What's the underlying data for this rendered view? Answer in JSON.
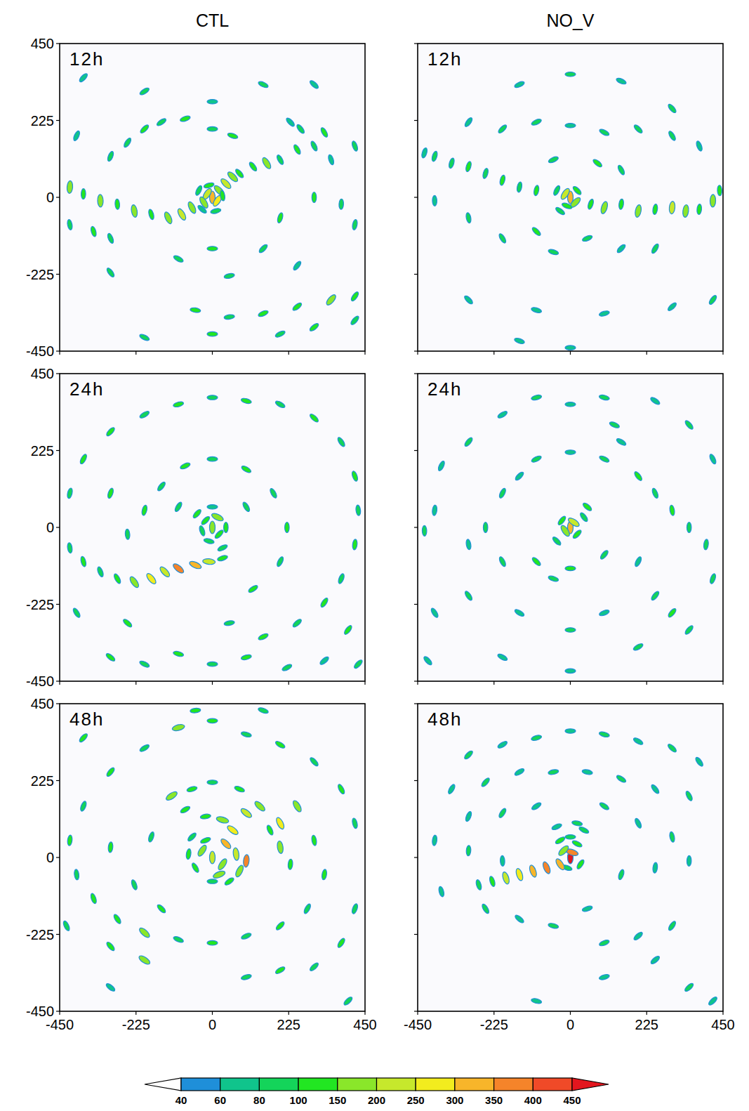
{
  "column_titles": [
    "CTL",
    "NO_V"
  ],
  "colorbar": {
    "ticks": [
      40,
      60,
      80,
      100,
      150,
      200,
      250,
      300,
      350,
      400,
      450
    ],
    "colors": [
      "#1f8fd9",
      "#10c48c",
      "#14d45a",
      "#22e622",
      "#8ae62a",
      "#c6e82c",
      "#f2ec1e",
      "#f7b52a",
      "#f5842a",
      "#f04a28",
      "#e3161e"
    ]
  },
  "chart_data": [
    {
      "type": "scatter",
      "title": "12h",
      "xlim": [
        -450,
        450
      ],
      "ylim": [
        -450,
        450
      ],
      "xticks": [
        -450,
        -225,
        0,
        225,
        450
      ],
      "yticks": [
        -450,
        -225,
        0,
        225,
        450
      ],
      "tick_labels": "y",
      "x": [
        0,
        -15,
        15,
        20,
        -25,
        30,
        -10,
        40,
        60,
        80,
        -40,
        10,
        -30,
        -420,
        -380,
        -330,
        -280,
        -230,
        -180,
        -130,
        -90,
        -60,
        -420,
        -350,
        -300,
        120,
        160,
        200,
        250,
        300,
        350,
        230,
        260,
        330,
        420,
        -250,
        -200,
        -150,
        -80,
        0,
        60,
        -300,
        -400,
        -380,
        -200,
        0,
        150,
        300,
        300,
        380,
        420,
        200,
        150,
        250,
        -100,
        0,
        50,
        -50,
        50,
        150,
        250,
        350,
        420,
        -200,
        0,
        200,
        300,
        420,
        -300
      ],
      "y": [
        0,
        10,
        -10,
        20,
        -15,
        5,
        35,
        40,
        60,
        70,
        20,
        -40,
        -35,
        30,
        10,
        -10,
        -20,
        -40,
        -50,
        -60,
        -50,
        -30,
        -80,
        -100,
        -120,
        90,
        100,
        110,
        140,
        150,
        110,
        220,
        200,
        190,
        150,
        160,
        200,
        220,
        230,
        200,
        180,
        120,
        180,
        350,
        310,
        280,
        330,
        330,
        0,
        -20,
        -80,
        -60,
        -150,
        -200,
        -180,
        -150,
        -230,
        -330,
        -350,
        -340,
        -320,
        -300,
        -290,
        -410,
        -400,
        -400,
        -380,
        -360,
        -220
      ],
      "values": [
        300,
        200,
        250,
        150,
        150,
        100,
        100,
        200,
        150,
        100,
        80,
        80,
        60,
        150,
        100,
        150,
        100,
        150,
        100,
        150,
        200,
        150,
        80,
        100,
        80,
        100,
        150,
        80,
        100,
        80,
        60,
        60,
        80,
        100,
        80,
        80,
        100,
        80,
        100,
        80,
        100,
        80,
        60,
        60,
        80,
        60,
        80,
        60,
        100,
        80,
        80,
        100,
        80,
        60,
        80,
        100,
        80,
        100,
        80,
        100,
        100,
        150,
        100,
        80,
        100,
        80,
        100,
        80,
        80
      ]
    },
    {
      "type": "scatter",
      "title": "12h",
      "xlim": [
        -450,
        450
      ],
      "ylim": [
        -450,
        450
      ],
      "xticks": [
        -450,
        -225,
        0,
        225,
        450
      ],
      "yticks": [
        -450,
        -225,
        0,
        225,
        450
      ],
      "tick_labels": false,
      "x": [
        0,
        -15,
        15,
        -10,
        20,
        -40,
        -30,
        60,
        100,
        150,
        200,
        250,
        300,
        340,
        380,
        420,
        440,
        -100,
        -150,
        -200,
        -250,
        -300,
        -350,
        -400,
        -430,
        -200,
        -100,
        0,
        100,
        200,
        300,
        380,
        -300,
        -150,
        0,
        150,
        300,
        -50,
        80,
        150,
        -100,
        -50,
        50,
        150,
        -200,
        -300,
        -400,
        250,
        -300,
        -100,
        100,
        300,
        420,
        -150,
        0
      ],
      "y": [
        0,
        10,
        -15,
        -25,
        20,
        20,
        -40,
        -20,
        -30,
        -20,
        -40,
        -35,
        -30,
        -40,
        -35,
        -10,
        20,
        20,
        30,
        50,
        70,
        90,
        100,
        120,
        130,
        200,
        220,
        210,
        190,
        200,
        180,
        150,
        220,
        330,
        360,
        340,
        260,
        110,
        100,
        80,
        -100,
        -160,
        -120,
        -150,
        -120,
        -60,
        -10,
        -150,
        -300,
        -330,
        -340,
        -320,
        -300,
        -420,
        -440
      ],
      "values": [
        300,
        200,
        150,
        100,
        100,
        80,
        80,
        100,
        150,
        100,
        150,
        100,
        200,
        150,
        100,
        150,
        100,
        100,
        80,
        100,
        80,
        100,
        80,
        80,
        60,
        80,
        80,
        60,
        80,
        80,
        80,
        60,
        60,
        60,
        80,
        60,
        80,
        80,
        100,
        80,
        100,
        80,
        80,
        60,
        80,
        80,
        60,
        80,
        60,
        60,
        60,
        60,
        80,
        60,
        60
      ]
    },
    {
      "type": "scatter",
      "title": "24h",
      "xlim": [
        -450,
        450
      ],
      "ylim": [
        -450,
        450
      ],
      "xticks": [
        -450,
        -225,
        0,
        225,
        450
      ],
      "yticks": [
        -450,
        -225,
        0,
        225,
        450
      ],
      "tick_labels": "y",
      "x": [
        0,
        -20,
        20,
        15,
        -30,
        40,
        -10,
        30,
        0,
        -45,
        -10,
        -50,
        -100,
        -140,
        -180,
        -230,
        -280,
        -330,
        -380,
        -420,
        30,
        -420,
        -380,
        -300,
        -200,
        -100,
        0,
        100,
        200,
        300,
        380,
        420,
        430,
        420,
        380,
        330,
        250,
        150,
        -200,
        -150,
        -80,
        0,
        100,
        180,
        220,
        200,
        120,
        -250,
        -300,
        -100,
        100,
        -300,
        -200,
        -100,
        0,
        100,
        220,
        330,
        -400,
        -250,
        50,
        400,
        430
      ],
      "y": [
        0,
        20,
        -20,
        30,
        -10,
        0,
        -40,
        -60,
        60,
        40,
        -100,
        -110,
        -120,
        -130,
        -150,
        -160,
        -150,
        -130,
        -100,
        -60,
        -90,
        100,
        200,
        280,
        330,
        360,
        380,
        370,
        360,
        320,
        250,
        150,
        50,
        -50,
        -150,
        -220,
        -280,
        -320,
        50,
        120,
        180,
        200,
        170,
        100,
        0,
        -100,
        -180,
        -20,
        100,
        60,
        60,
        -380,
        -400,
        -370,
        -400,
        -380,
        -410,
        -390,
        -250,
        -280,
        -280,
        -300,
        -400
      ],
      "values": [
        150,
        100,
        100,
        150,
        80,
        100,
        80,
        80,
        60,
        100,
        200,
        300,
        350,
        200,
        250,
        150,
        100,
        80,
        100,
        80,
        100,
        80,
        100,
        100,
        80,
        100,
        80,
        100,
        80,
        100,
        80,
        100,
        80,
        100,
        80,
        100,
        80,
        100,
        100,
        80,
        100,
        80,
        100,
        80,
        100,
        80,
        100,
        80,
        100,
        80,
        80,
        100,
        80,
        100,
        80,
        100,
        80,
        60,
        80,
        100,
        80,
        100,
        80
      ]
    },
    {
      "type": "scatter",
      "title": "24h",
      "xlim": [
        -450,
        450
      ],
      "ylim": [
        -450,
        450
      ],
      "xticks": [
        -450,
        -225,
        0,
        225,
        450
      ],
      "yticks": [
        -450,
        -225,
        0,
        225,
        450
      ],
      "tick_labels": false,
      "x": [
        0,
        10,
        -15,
        20,
        -25,
        40,
        50,
        -40,
        -200,
        -150,
        -100,
        0,
        100,
        150,
        130,
        200,
        250,
        300,
        350,
        400,
        -250,
        -300,
        -200,
        -100,
        -50,
        0,
        100,
        200,
        250,
        300,
        350,
        -400,
        -430,
        -380,
        -300,
        -200,
        -100,
        0,
        100,
        250,
        350,
        420,
        -400,
        -300,
        -150,
        0,
        100,
        -200,
        0,
        200,
        420,
        -420
      ],
      "y": [
        0,
        15,
        -10,
        -20,
        20,
        30,
        60,
        -40,
        100,
        150,
        200,
        220,
        200,
        250,
        300,
        150,
        100,
        50,
        0,
        -50,
        0,
        -50,
        -100,
        -100,
        -150,
        -120,
        -80,
        -100,
        -200,
        -250,
        -300,
        50,
        -10,
        180,
        250,
        330,
        380,
        360,
        380,
        370,
        300,
        200,
        -250,
        -200,
        -250,
        -300,
        -250,
        -380,
        -420,
        -350,
        -150,
        -390
      ],
      "values": [
        300,
        200,
        150,
        100,
        100,
        80,
        100,
        80,
        80,
        60,
        80,
        60,
        80,
        60,
        80,
        100,
        80,
        100,
        80,
        80,
        80,
        60,
        80,
        100,
        80,
        100,
        80,
        60,
        80,
        100,
        80,
        60,
        80,
        60,
        80,
        60,
        80,
        60,
        80,
        60,
        80,
        60,
        60,
        80,
        60,
        80,
        60,
        60,
        60,
        80,
        80,
        60
      ]
    },
    {
      "type": "scatter",
      "title": "48h",
      "xlim": [
        -450,
        450
      ],
      "ylim": [
        -450,
        450
      ],
      "xticks": [
        -450,
        -225,
        0,
        225,
        450
      ],
      "yticks": [
        -450,
        -225,
        0,
        225,
        450
      ],
      "tick_labels": true,
      "x": [
        0,
        -30,
        30,
        40,
        60,
        -50,
        20,
        -20,
        70,
        -70,
        0,
        50,
        80,
        -60,
        30,
        -20,
        100,
        100,
        -80,
        -120,
        -60,
        0,
        80,
        140,
        170,
        200,
        230,
        200,
        250,
        300,
        330,
        280,
        200,
        100,
        0,
        -100,
        -200,
        -280,
        -350,
        -400,
        -420,
        -380,
        -300,
        -200,
        -100,
        0,
        100,
        200,
        300,
        380,
        420,
        420,
        380,
        300,
        200,
        100,
        -200,
        -300,
        -150,
        -230,
        -300,
        -180,
        -380,
        -430,
        -300,
        400,
        150,
        -50
      ],
      "y": [
        0,
        20,
        -20,
        40,
        80,
        -30,
        -50,
        50,
        10,
        10,
        -70,
        -70,
        -40,
        60,
        110,
        120,
        130,
        -10,
        140,
        180,
        200,
        220,
        200,
        150,
        80,
        30,
        -20,
        100,
        150,
        50,
        -50,
        -150,
        -200,
        -230,
        -250,
        -240,
        -220,
        -180,
        -120,
        -50,
        50,
        150,
        250,
        320,
        380,
        400,
        360,
        330,
        280,
        200,
        100,
        -150,
        -250,
        -320,
        -330,
        -350,
        -300,
        -260,
        -150,
        -80,
        30,
        60,
        350,
        -200,
        -380,
        -420,
        430,
        430
      ],
      "values": [
        200,
        150,
        150,
        300,
        250,
        100,
        150,
        100,
        200,
        100,
        80,
        100,
        150,
        80,
        150,
        100,
        200,
        350,
        100,
        150,
        100,
        80,
        100,
        150,
        100,
        150,
        100,
        250,
        150,
        100,
        100,
        80,
        100,
        80,
        100,
        80,
        150,
        100,
        100,
        80,
        100,
        80,
        100,
        80,
        150,
        100,
        80,
        100,
        80,
        100,
        80,
        80,
        100,
        80,
        100,
        80,
        150,
        100,
        100,
        80,
        100,
        80,
        100,
        80,
        60,
        80,
        80,
        100
      ]
    },
    {
      "type": "scatter",
      "title": "48h",
      "xlim": [
        -450,
        450
      ],
      "ylim": [
        -450,
        450
      ],
      "xticks": [
        -450,
        -225,
        0,
        225,
        450
      ],
      "yticks": [
        -450,
        -225,
        0,
        225,
        450
      ],
      "tick_labels": "x",
      "x": [
        0,
        5,
        -20,
        20,
        0,
        -30,
        40,
        30,
        -10,
        20,
        -40,
        -30,
        -70,
        -110,
        -150,
        -190,
        -230,
        -270,
        -300,
        -200,
        -100,
        0,
        100,
        200,
        300,
        380,
        -350,
        -250,
        -150,
        -50,
        50,
        150,
        250,
        350,
        -300,
        -200,
        -100,
        100,
        200,
        300,
        -400,
        -300,
        -200,
        150,
        250,
        350,
        -380,
        -250,
        -150,
        -50,
        50,
        100,
        200,
        300,
        100,
        350,
        420,
        -100,
        250
      ],
      "y": [
        0,
        15,
        20,
        40,
        60,
        50,
        80,
        -20,
        -30,
        100,
        90,
        -20,
        -30,
        -40,
        -50,
        -60,
        -70,
        -80,
        300,
        330,
        350,
        370,
        360,
        340,
        320,
        280,
        200,
        220,
        250,
        250,
        250,
        230,
        200,
        180,
        120,
        130,
        150,
        150,
        100,
        60,
        50,
        20,
        -10,
        -50,
        -30,
        -10,
        -100,
        -150,
        -180,
        -200,
        -150,
        -250,
        -230,
        -200,
        -350,
        -380,
        -420,
        -420,
        -300
      ],
      "values": [
        450,
        350,
        150,
        100,
        80,
        100,
        80,
        100,
        80,
        80,
        60,
        300,
        350,
        300,
        250,
        200,
        100,
        80,
        80,
        60,
        80,
        60,
        80,
        60,
        80,
        60,
        60,
        80,
        60,
        80,
        60,
        80,
        60,
        80,
        60,
        80,
        60,
        80,
        60,
        80,
        60,
        80,
        60,
        80,
        60,
        60,
        60,
        80,
        60,
        80,
        60,
        80,
        60,
        80,
        60,
        80,
        60,
        60,
        60
      ]
    }
  ]
}
